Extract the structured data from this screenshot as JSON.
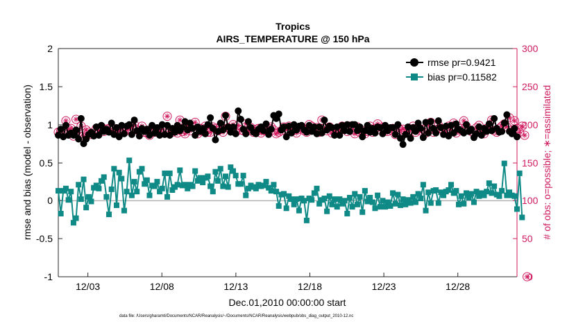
{
  "chart_data": {
    "type": "line",
    "title": "Tropics",
    "subtitle": "AIRS_TEMPERATURE @ 150 hPa",
    "xlabel": "Dec.01,2010 00:00:00 start",
    "ylabel": "rmse and bias (model - observation)",
    "y2label": "# of obs: o=possible; ∗=assimilated",
    "xlim": [
      1.0,
      32.0
    ],
    "ylim": [
      -1,
      2
    ],
    "y2lim": [
      0,
      300
    ],
    "xtick_values": [
      3,
      8,
      13,
      18,
      23,
      28
    ],
    "xtick_labels": [
      "12/03",
      "12/08",
      "12/13",
      "12/18",
      "12/23",
      "12/28"
    ],
    "ytick_labels": [
      "2",
      "1.5",
      "1",
      "0.5",
      "0",
      "-0.5",
      "-1"
    ],
    "y2tick_labels": [
      "300",
      "250",
      "200",
      "150",
      "100",
      "50",
      "0"
    ],
    "legend": [
      "rmse pr=0.9421",
      "bias pr=0.11582"
    ],
    "legend_position": "top-right",
    "zero_line": true,
    "colors": {
      "rmse": "#000000",
      "bias": "#0f8a86",
      "obs": "#d01a5e",
      "zero_line": "#b3b3b3"
    },
    "series": [
      {
        "name": "rmse",
        "values": [
          0.86,
          0.94,
          0.84,
          0.99,
          0.86,
          0.89,
          0.86,
          0.93,
          0.81,
          1.08,
          0.75,
          0.81,
          0.87,
          0.9,
          0.85,
          0.97,
          0.86,
          0.99,
          0.91,
          0.94,
          0.9,
          1.02,
          0.87,
          0.96,
          0.84,
          0.99,
          0.88,
          0.98,
          1.0,
          0.87,
          1.06,
          0.92,
          0.85,
          0.95,
          0.91,
          0.94,
          0.86,
          0.99,
          0.89,
          0.96,
          0.86,
          1.0,
          0.87,
          0.99,
          0.86,
          0.95,
          0.9,
          0.99,
          0.92,
          0.96,
          1.04,
          0.93,
          1.02,
          0.95,
          0.86,
          0.97,
          0.91,
          0.95,
          0.88,
          1.0,
          1.09,
          0.95,
          0.8,
          0.91,
          1.02,
          0.93,
          1.12,
          0.97,
          0.9,
          0.97,
          0.88,
          1.18,
          1.07,
          0.94,
          0.88,
          1.04,
          0.96,
          0.9,
          0.88,
          0.94,
          0.97,
          0.92,
          1.01,
          0.87,
          0.94,
          1.12,
          1.08,
          1.14,
          0.93,
          0.97,
          0.84,
          0.98,
          0.89,
          1.0,
          0.93,
          0.98,
          0.99,
          0.93,
          0.9,
          0.99,
          0.91,
          0.97,
          0.88,
          0.97,
          0.89,
          1.06,
          0.93,
          0.98,
          0.96,
          0.86,
          0.97,
          0.86,
          0.99,
          0.92,
          1.0,
          0.91,
          1.0,
          1.0,
          0.92,
          0.97,
          0.84,
          0.92,
          0.99,
          0.9,
          0.95,
          0.89,
          0.97,
          0.96,
          0.88,
          0.99,
          0.92,
          0.96,
          0.96,
          0.87,
          1.0,
          0.82,
          0.74,
          0.87,
          0.97,
          0.82,
          0.96,
          0.91,
          1.02,
          0.95,
          0.83,
          1.03,
          0.89,
          1.04,
          0.95,
          0.89,
          1.05,
          0.96,
          0.87,
          0.98,
          0.85,
          0.99,
          0.89,
          1.01,
          0.94,
          0.92,
          0.89,
          1.0,
          0.91,
          0.94,
          0.83,
          0.88,
          0.97,
          0.86,
          0.95,
          0.91,
          1.01,
          0.92,
          1.08,
          0.95,
          0.9,
          0.91,
          1.02,
          1.13,
          0.91,
          0.88,
          0.95,
          0.84
        ]
      },
      {
        "name": "bias",
        "values": [
          0.13,
          -0.17,
          0.13,
          0.16,
          0.01,
          0.12,
          -0.29,
          -0.23,
          0.21,
          0.02,
          0.28,
          -0.09,
          0.05,
          -0.01,
          0.17,
          0.2,
          0.16,
          0.26,
          0.31,
          0.05,
          -0.18,
          0.15,
          0.42,
          -0.06,
          0.37,
          0.29,
          -0.13,
          0.12,
          0.53,
          0.07,
          0.25,
          0.12,
          0.38,
          0.42,
          0.22,
          0.27,
          0.07,
          0.2,
          0.19,
          0.25,
          0.12,
          0.16,
          0.36,
          0.05,
          0.36,
          0.14,
          0.18,
          0.21,
          0.4,
          0.2,
          0.21,
          0.16,
          0.21,
          0.19,
          0.39,
          0.26,
          0.3,
          0.24,
          0.3,
          0.32,
          0.19,
          0.12,
          0.38,
          0.26,
          0.42,
          0.19,
          0.32,
          0.18,
          0.44,
          0.39,
          0.33,
          0.22,
          0.22,
          0.33,
          0.07,
          0.16,
          0.2,
          0.18,
          0.16,
          0.21,
          0.19,
          0.2,
          0.25,
          0.17,
          0.13,
          0.21,
          0.12,
          -0.07,
          0.08,
          0.09,
          -0.1,
          0.06,
          0.02,
          -0.05,
          0.02,
          -0.13,
          0.03,
          0.0,
          -0.26,
          0.03,
          0.01,
          0.1,
          0.16,
          -0.04,
          0.01,
          0.03,
          -0.14,
          0.06,
          -0.05,
          0.02,
          -0.08,
          0.02,
          -0.04,
          0.0,
          -0.17,
          0.04,
          -0.08,
          0.09,
          -0.05,
          0.05,
          -0.15,
          0.13,
          -0.01,
          0.04,
          -0.02,
          -0.1,
          0.07,
          -0.08,
          0.0,
          -0.08,
          -0.02,
          -0.07,
          0.1,
          -0.04,
          0.08,
          -0.06,
          0.02,
          -0.05,
          0.01,
          -0.03,
          0.05,
          -0.02,
          0.09,
          0.03,
          0.21,
          -0.13,
          0.11,
          -0.03,
          0.13,
          0.14,
          -0.03,
          0.11,
          0.07,
          0.12,
          0.14,
          0.21,
          0.1,
          0.13,
          -0.05,
          0.06,
          -0.04,
          0.1,
          0.04,
          0.09,
          -0.02,
          0.12,
          0.06,
          0.1,
          0.07,
          0.12,
          0.23,
          0.1,
          0.19,
          0.08,
          0.06,
          0.13,
          0.49,
          0.07,
          0.11,
          0.07,
          0.06,
          -0.11,
          0.36,
          -0.22
        ]
      },
      {
        "name": "obs",
        "values": [
          190,
          192,
          188,
          205,
          194,
          195,
          185,
          207,
          190,
          198,
          185,
          193,
          190,
          187,
          188,
          195,
          192,
          197,
          191,
          194,
          195,
          192,
          195,
          190,
          193,
          195,
          190,
          193,
          195,
          197,
          200,
          193,
          192,
          198,
          190,
          189,
          186,
          195,
          190,
          190,
          191,
          194,
          189,
          211,
          191,
          190,
          193,
          189,
          206,
          191,
          188,
          199,
          192,
          197,
          203,
          188,
          195,
          191,
          198,
          190,
          190,
          197,
          195,
          192,
          198,
          190,
          211,
          196,
          193,
          200,
          190,
          199,
          193,
          192,
          201,
          192,
          196,
          190,
          194,
          195,
          189,
          192,
          192,
          195,
          197,
          193,
          188,
          190,
          192,
          197,
          195,
          198,
          193,
          193,
          189,
          194,
          197,
          192,
          190,
          200,
          198,
          193,
          196,
          190,
          206,
          195,
          192,
          197,
          189,
          191,
          189,
          192,
          198,
          195,
          191,
          198,
          193,
          188,
          197,
          190,
          192,
          188,
          191,
          198,
          190,
          195,
          201,
          193,
          197,
          192,
          191,
          193,
          195,
          187,
          196,
          193,
          194,
          191,
          190,
          193,
          198,
          190,
          196,
          192,
          194,
          189,
          199,
          203,
          190,
          193,
          199,
          195,
          192,
          190,
          198,
          193,
          202,
          189,
          195,
          192,
          205,
          198,
          193,
          191,
          189,
          196,
          199,
          191,
          188,
          195,
          197,
          206,
          192,
          190,
          195,
          198,
          201,
          197,
          209,
          193,
          205,
          195,
          190,
          198,
          186,
          0
        ]
      }
    ]
  },
  "footnote": "data file: /Users/gharamti/Documents/NCAR/Reanalysis/~/Documents/NCAR/Reanalysis/webpub/obs_diag_output_2010-12.nc"
}
